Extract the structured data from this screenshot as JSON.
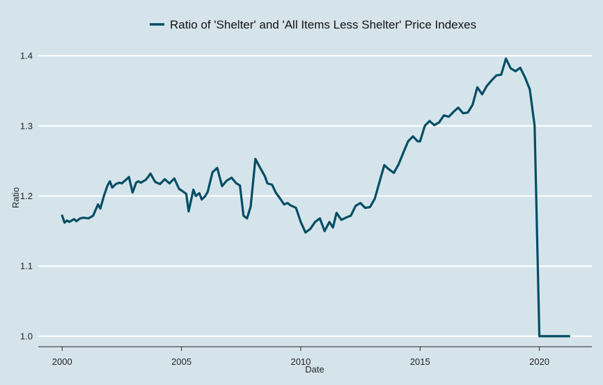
{
  "chart_data": {
    "type": "line",
    "title": "",
    "xlabel": "Date",
    "ylabel": "Ratio",
    "xlim": [
      1999.0,
      2022.2
    ],
    "ylim": [
      0.985,
      1.42
    ],
    "x_ticks": [
      2000,
      2005,
      2010,
      2015,
      2020
    ],
    "y_ticks": [
      1.0,
      1.1,
      1.2,
      1.3,
      1.4
    ],
    "x_tick_labels": [
      "2000",
      "2005",
      "2010",
      "2015",
      "2020"
    ],
    "y_tick_labels": [
      "1.0",
      "1.1",
      "1.2",
      "1.3",
      "1.4"
    ],
    "grid": "horizontal",
    "legend_position": "top",
    "colors": {
      "background": "#d5e4eb",
      "line": "#014d64",
      "grid": "#ffffff",
      "axis": "#222222"
    },
    "series": [
      {
        "name": "Ratio of 'Shelter' and 'All Items Less Shelter' Price Indexes",
        "x": [
          2000.0,
          2000.1,
          2000.2,
          2000.3,
          2000.5,
          2000.6,
          2000.75,
          2000.9,
          2001.1,
          2001.3,
          2001.5,
          2001.6,
          2001.75,
          2001.9,
          2002.0,
          2002.1,
          2002.25,
          2002.4,
          2002.5,
          2002.6,
          2002.8,
          2002.95,
          2003.1,
          2003.2,
          2003.3,
          2003.5,
          2003.6,
          2003.7,
          2003.9,
          2004.1,
          2004.3,
          2004.5,
          2004.7,
          2004.9,
          2005.0,
          2005.2,
          2005.3,
          2005.5,
          2005.6,
          2005.75,
          2005.85,
          2006.0,
          2006.1,
          2006.3,
          2006.5,
          2006.7,
          2006.9,
          2007.1,
          2007.3,
          2007.45,
          2007.6,
          2007.75,
          2007.9,
          2008.1,
          2008.3,
          2008.5,
          2008.6,
          2008.8,
          2008.95,
          2009.1,
          2009.3,
          2009.45,
          2009.55,
          2009.8,
          2010.0,
          2010.2,
          2010.4,
          2010.6,
          2010.8,
          2011.0,
          2011.2,
          2011.35,
          2011.5,
          2011.7,
          2011.95,
          2012.1,
          2012.3,
          2012.5,
          2012.7,
          2012.9,
          2013.1,
          2013.3,
          2013.5,
          2013.7,
          2013.9,
          2014.1,
          2014.3,
          2014.5,
          2014.7,
          2014.9,
          2015.0,
          2015.2,
          2015.4,
          2015.6,
          2015.8,
          2016.0,
          2016.2,
          2016.4,
          2016.6,
          2016.8,
          2017.0,
          2017.2,
          2017.4,
          2017.6,
          2017.8,
          2018.0,
          2018.2,
          2018.4,
          2018.6,
          2018.8,
          2019.0,
          2019.2,
          2019.4,
          2019.6,
          2019.8,
          2020.0,
          2020.2,
          2020.35,
          2020.5,
          2020.7,
          2020.9,
          2021.1,
          2021.25
        ],
        "values": [
          1.172,
          1.162,
          1.165,
          1.163,
          1.167,
          1.164,
          1.168,
          1.169,
          1.168,
          1.172,
          1.188,
          1.182,
          1.2,
          1.215,
          1.221,
          1.212,
          1.217,
          1.219,
          1.218,
          1.221,
          1.227,
          1.205,
          1.219,
          1.221,
          1.219,
          1.223,
          1.227,
          1.232,
          1.22,
          1.217,
          1.224,
          1.218,
          1.225,
          1.21,
          1.208,
          1.203,
          1.178,
          1.209,
          1.2,
          1.204,
          1.195,
          1.2,
          1.206,
          1.234,
          1.24,
          1.214,
          1.222,
          1.226,
          1.218,
          1.215,
          1.172,
          1.168,
          1.185,
          1.253,
          1.24,
          1.228,
          1.218,
          1.216,
          1.205,
          1.198,
          1.188,
          1.19,
          1.187,
          1.183,
          1.163,
          1.148,
          1.153,
          1.163,
          1.168,
          1.15,
          1.163,
          1.155,
          1.176,
          1.166,
          1.17,
          1.172,
          1.186,
          1.19,
          1.183,
          1.184,
          1.196,
          1.22,
          1.244,
          1.238,
          1.233,
          1.245,
          1.262,
          1.278,
          1.285,
          1.278,
          1.278,
          1.3,
          1.307,
          1.301,
          1.305,
          1.315,
          1.313,
          1.32,
          1.326,
          1.318,
          1.319,
          1.33,
          1.355,
          1.345,
          1.357,
          1.365,
          1.372,
          1.373,
          1.396,
          1.382,
          1.378,
          1.383,
          1.369,
          1.352,
          1.3,
          1.0,
          1.0,
          1.0,
          1.0,
          1.0,
          1.0,
          1.0,
          1.0
        ]
      }
    ]
  }
}
